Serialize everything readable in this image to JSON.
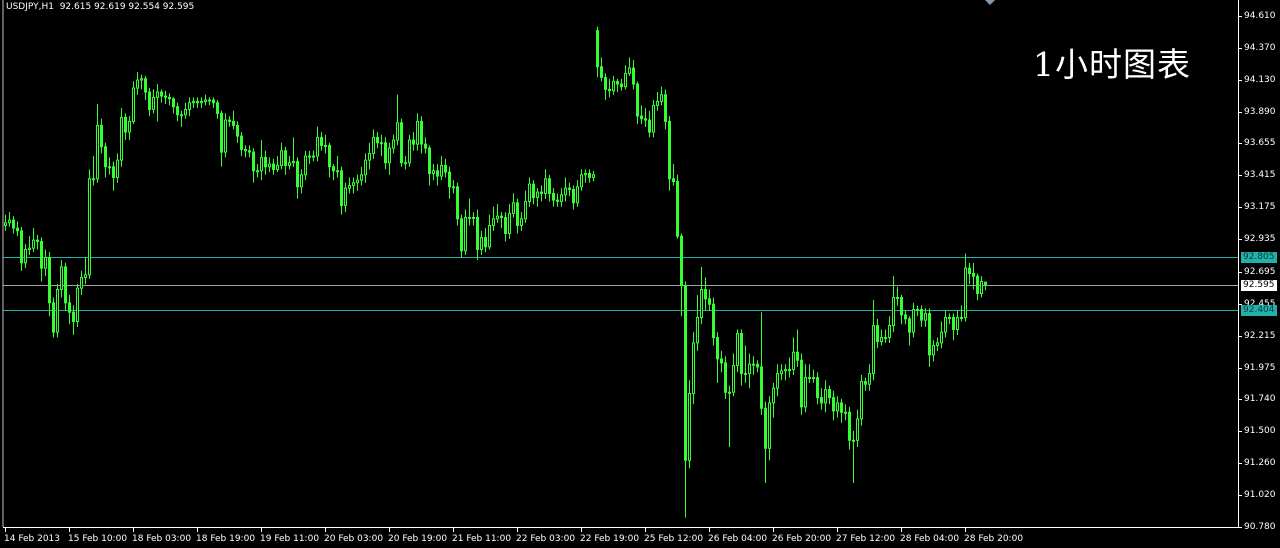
{
  "header": {
    "symbol": "USDJPY,H1",
    "ohlc_text": "92.615 92.619 92.554 92.595"
  },
  "overlay_text": "1小时图表",
  "colors": {
    "background": "#000000",
    "candle": "#33ff33",
    "axis": "#ffffff",
    "level_line": "#20b2aa",
    "bid_line": "#a0a0a0"
  },
  "levels": [
    {
      "value": 92.805,
      "label": "92.805",
      "kind": "level"
    },
    {
      "value": 92.595,
      "label": "92.595",
      "kind": "bid"
    },
    {
      "value": 92.404,
      "label": "92.404",
      "kind": "level"
    }
  ],
  "chart_data": {
    "type": "candlestick",
    "symbol": "USDJPY",
    "timeframe": "H1",
    "ylim": [
      90.78,
      94.61
    ],
    "grid": false,
    "y_ticks": [
      "94.610",
      "94.370",
      "94.130",
      "93.890",
      "93.655",
      "93.415",
      "93.175",
      "92.935",
      "92.695",
      "92.455",
      "92.215",
      "91.975",
      "91.740",
      "91.500",
      "91.260",
      "91.020",
      "90.780"
    ],
    "x_ticks": [
      "14 Feb 2013",
      "15 Feb 10:00",
      "18 Feb 03:00",
      "18 Feb 19:00",
      "19 Feb 11:00",
      "20 Feb 03:00",
      "20 Feb 19:00",
      "21 Feb 11:00",
      "22 Feb 03:00",
      "22 Feb 19:00",
      "25 Feb 12:00",
      "26 Feb 04:00",
      "26 Feb 20:00",
      "27 Feb 12:00",
      "28 Feb 04:00",
      "28 Feb 20:00"
    ],
    "ohlc": [
      [
        93.04,
        93.12,
        93.0,
        93.06
      ],
      [
        93.06,
        93.14,
        93.03,
        93.08
      ],
      [
        93.08,
        93.11,
        92.98,
        93.02
      ],
      [
        93.02,
        93.07,
        92.96,
        93.0
      ],
      [
        93.0,
        93.03,
        92.7,
        92.76
      ],
      [
        92.76,
        92.9,
        92.72,
        92.86
      ],
      [
        92.86,
        92.96,
        92.82,
        92.87
      ],
      [
        92.87,
        93.02,
        92.84,
        92.93
      ],
      [
        92.93,
        92.97,
        92.86,
        92.92
      ],
      [
        92.92,
        92.95,
        92.62,
        92.72
      ],
      [
        92.72,
        92.86,
        92.66,
        92.8
      ],
      [
        92.8,
        92.84,
        92.36,
        92.46
      ],
      [
        92.46,
        92.5,
        92.2,
        92.24
      ],
      [
        92.24,
        92.6,
        92.2,
        92.56
      ],
      [
        92.56,
        92.78,
        92.5,
        92.73
      ],
      [
        92.73,
        92.76,
        92.4,
        92.46
      ],
      [
        92.46,
        92.52,
        92.3,
        92.39
      ],
      [
        92.39,
        92.44,
        92.22,
        92.32
      ],
      [
        92.32,
        92.6,
        92.28,
        92.57
      ],
      [
        92.57,
        92.7,
        92.52,
        92.65
      ],
      [
        92.65,
        92.8,
        92.6,
        92.67
      ],
      [
        92.67,
        93.46,
        92.64,
        93.39
      ],
      [
        93.39,
        93.56,
        93.34,
        93.39
      ],
      [
        93.39,
        93.95,
        93.36,
        93.79
      ],
      [
        93.79,
        93.84,
        93.58,
        93.63
      ],
      [
        93.63,
        93.66,
        93.4,
        93.48
      ],
      [
        93.48,
        93.55,
        93.42,
        93.48
      ],
      [
        93.48,
        93.52,
        93.3,
        93.4
      ],
      [
        93.4,
        93.58,
        93.36,
        93.53
      ],
      [
        93.53,
        93.92,
        93.48,
        93.85
      ],
      [
        93.85,
        93.88,
        93.68,
        93.74
      ],
      [
        93.74,
        93.86,
        93.68,
        93.82
      ],
      [
        93.82,
        94.12,
        93.8,
        94.07
      ],
      [
        94.07,
        94.19,
        94.02,
        94.13
      ],
      [
        94.13,
        94.17,
        94.06,
        94.14
      ],
      [
        94.14,
        94.16,
        93.98,
        94.04
      ],
      [
        94.04,
        94.07,
        93.86,
        93.91
      ],
      [
        93.91,
        94.06,
        93.88,
        94.0
      ],
      [
        94.0,
        94.1,
        93.82,
        94.04
      ],
      [
        94.04,
        94.06,
        93.96,
        94.01
      ],
      [
        94.01,
        94.05,
        93.95,
        94.0
      ],
      [
        94.0,
        94.03,
        93.94,
        93.99
      ],
      [
        93.99,
        94.0,
        93.88,
        93.93
      ],
      [
        93.93,
        93.96,
        93.82,
        93.87
      ],
      [
        93.87,
        93.9,
        93.78,
        93.87
      ],
      [
        93.87,
        93.96,
        93.84,
        93.91
      ],
      [
        93.91,
        94.0,
        93.86,
        93.96
      ],
      [
        93.96,
        94.0,
        93.92,
        93.97
      ],
      [
        93.97,
        94.0,
        93.92,
        93.96
      ],
      [
        93.96,
        94.0,
        93.92,
        93.97
      ],
      [
        93.97,
        94.02,
        93.94,
        93.98
      ],
      [
        93.98,
        94.0,
        93.94,
        93.98
      ],
      [
        93.98,
        94.0,
        93.92,
        93.96
      ],
      [
        93.96,
        93.98,
        93.84,
        93.88
      ],
      [
        93.88,
        93.9,
        93.48,
        93.59
      ],
      [
        93.59,
        93.88,
        93.55,
        93.83
      ],
      [
        93.83,
        93.86,
        93.78,
        93.82
      ],
      [
        93.82,
        93.9,
        93.76,
        93.79
      ],
      [
        93.79,
        93.82,
        93.66,
        93.71
      ],
      [
        93.71,
        93.74,
        93.56,
        93.61
      ],
      [
        93.61,
        93.64,
        93.55,
        93.6
      ],
      [
        93.6,
        93.64,
        93.55,
        93.59
      ],
      [
        93.59,
        93.62,
        93.36,
        93.45
      ],
      [
        93.45,
        93.5,
        93.4,
        93.45
      ],
      [
        93.45,
        93.68,
        93.38,
        93.55
      ],
      [
        93.55,
        93.6,
        93.42,
        93.48
      ],
      [
        93.48,
        93.55,
        93.44,
        93.5
      ],
      [
        93.5,
        93.54,
        93.42,
        93.46
      ],
      [
        93.46,
        93.56,
        93.44,
        93.49
      ],
      [
        93.49,
        93.66,
        93.46,
        93.6
      ],
      [
        93.6,
        93.63,
        93.42,
        93.49
      ],
      [
        93.49,
        93.56,
        93.46,
        93.51
      ],
      [
        93.51,
        93.7,
        93.48,
        93.52
      ],
      [
        93.52,
        93.55,
        93.24,
        93.33
      ],
      [
        93.33,
        93.46,
        93.28,
        93.42
      ],
      [
        93.42,
        93.6,
        93.38,
        93.56
      ],
      [
        93.56,
        93.6,
        93.5,
        93.56
      ],
      [
        93.56,
        93.6,
        93.52,
        93.56
      ],
      [
        93.56,
        93.78,
        93.52,
        93.7
      ],
      [
        93.7,
        93.74,
        93.6,
        93.64
      ],
      [
        93.64,
        93.72,
        93.58,
        93.64
      ],
      [
        93.64,
        93.66,
        93.4,
        93.48
      ],
      [
        93.48,
        93.5,
        93.38,
        93.45
      ],
      [
        93.45,
        93.56,
        93.4,
        93.45
      ],
      [
        93.45,
        93.48,
        93.12,
        93.19
      ],
      [
        93.19,
        93.36,
        93.14,
        93.32
      ],
      [
        93.32,
        93.4,
        93.28,
        93.34
      ],
      [
        93.34,
        93.4,
        93.28,
        93.36
      ],
      [
        93.36,
        93.42,
        93.3,
        93.38
      ],
      [
        93.38,
        93.48,
        93.34,
        93.42
      ],
      [
        93.42,
        93.58,
        93.36,
        93.53
      ],
      [
        93.53,
        93.66,
        93.46,
        93.58
      ],
      [
        93.58,
        93.76,
        93.54,
        93.7
      ],
      [
        93.7,
        93.74,
        93.62,
        93.66
      ],
      [
        93.66,
        93.72,
        93.56,
        93.66
      ],
      [
        93.66,
        93.7,
        93.46,
        93.51
      ],
      [
        93.51,
        93.66,
        93.42,
        93.62
      ],
      [
        93.62,
        93.72,
        93.58,
        93.68
      ],
      [
        93.68,
        94.02,
        93.64,
        93.81
      ],
      [
        93.81,
        93.84,
        93.48,
        93.51
      ],
      [
        93.51,
        93.56,
        93.46,
        93.51
      ],
      [
        93.51,
        93.72,
        93.48,
        93.68
      ],
      [
        93.68,
        93.74,
        93.6,
        93.65
      ],
      [
        93.65,
        93.88,
        93.6,
        93.82
      ],
      [
        93.82,
        93.86,
        93.58,
        93.65
      ],
      [
        93.65,
        93.7,
        93.58,
        93.62
      ],
      [
        93.62,
        93.64,
        93.34,
        93.43
      ],
      [
        93.43,
        93.5,
        93.38,
        93.45
      ],
      [
        93.45,
        93.5,
        93.34,
        93.41
      ],
      [
        93.41,
        93.56,
        93.38,
        93.49
      ],
      [
        93.49,
        93.54,
        93.4,
        93.44
      ],
      [
        93.44,
        93.48,
        93.24,
        93.33
      ],
      [
        93.33,
        93.38,
        93.28,
        93.33
      ],
      [
        93.33,
        93.36,
        93.04,
        93.09
      ],
      [
        93.09,
        93.12,
        92.8,
        92.85
      ],
      [
        92.85,
        93.16,
        92.82,
        93.1
      ],
      [
        93.1,
        93.24,
        93.04,
        93.1
      ],
      [
        93.1,
        93.14,
        93.04,
        93.1
      ],
      [
        93.1,
        93.16,
        92.78,
        92.86
      ],
      [
        92.86,
        93.0,
        92.82,
        92.95
      ],
      [
        92.95,
        93.02,
        92.84,
        92.88
      ],
      [
        92.88,
        93.12,
        92.86,
        93.04
      ],
      [
        93.04,
        93.18,
        93.0,
        93.09
      ],
      [
        93.09,
        93.2,
        93.06,
        93.11
      ],
      [
        93.11,
        93.14,
        93.02,
        93.1
      ],
      [
        93.1,
        93.14,
        92.92,
        92.98
      ],
      [
        92.98,
        93.2,
        92.94,
        93.13
      ],
      [
        93.13,
        93.28,
        93.1,
        93.21
      ],
      [
        93.21,
        93.24,
        92.98,
        93.04
      ],
      [
        93.04,
        93.14,
        93.0,
        93.09
      ],
      [
        93.09,
        93.3,
        93.06,
        93.22
      ],
      [
        93.22,
        93.4,
        93.18,
        93.35
      ],
      [
        93.35,
        93.38,
        93.2,
        93.25
      ],
      [
        93.25,
        93.32,
        93.18,
        93.29
      ],
      [
        93.29,
        93.34,
        93.22,
        93.28
      ],
      [
        93.28,
        93.46,
        93.24,
        93.39
      ],
      [
        93.39,
        93.42,
        93.22,
        93.28
      ],
      [
        93.28,
        93.32,
        93.18,
        93.23
      ],
      [
        93.23,
        93.28,
        93.18,
        93.22
      ],
      [
        93.22,
        93.32,
        93.18,
        93.27
      ],
      [
        93.27,
        93.4,
        93.22,
        93.32
      ],
      [
        93.32,
        93.36,
        93.26,
        93.31
      ],
      [
        93.31,
        93.34,
        93.16,
        93.21
      ],
      [
        93.21,
        93.38,
        93.18,
        93.33
      ],
      [
        93.33,
        93.46,
        93.3,
        93.42
      ],
      [
        93.42,
        93.46,
        93.36,
        93.43
      ],
      [
        93.43,
        93.46,
        93.36,
        93.4
      ],
      [
        93.4,
        93.45,
        93.37,
        93.42
      ],
      [
        94.5,
        94.53,
        94.15,
        94.23
      ],
      [
        94.23,
        94.3,
        94.12,
        94.15
      ],
      [
        94.15,
        94.18,
        93.98,
        94.06
      ],
      [
        94.06,
        94.14,
        94.0,
        94.05
      ],
      [
        94.05,
        94.16,
        94.02,
        94.12
      ],
      [
        94.12,
        94.14,
        94.04,
        94.1
      ],
      [
        94.1,
        94.14,
        94.05,
        94.08
      ],
      [
        94.08,
        94.24,
        94.06,
        94.18
      ],
      [
        94.18,
        94.3,
        94.16,
        94.22
      ],
      [
        94.22,
        94.28,
        94.06,
        94.1
      ],
      [
        94.1,
        94.12,
        93.8,
        93.86
      ],
      [
        93.86,
        93.94,
        93.8,
        93.84
      ],
      [
        93.84,
        93.92,
        93.78,
        93.83
      ],
      [
        93.83,
        93.9,
        93.7,
        93.74
      ],
      [
        93.74,
        93.98,
        93.7,
        93.94
      ],
      [
        93.94,
        94.04,
        93.9,
        93.97
      ],
      [
        93.97,
        94.08,
        93.94,
        94.02
      ],
      [
        94.02,
        94.06,
        93.76,
        93.82
      ],
      [
        93.82,
        93.86,
        93.3,
        93.39
      ],
      [
        93.39,
        93.5,
        93.34,
        93.37
      ],
      [
        93.37,
        93.42,
        92.94,
        92.96
      ],
      [
        92.96,
        92.98,
        92.36,
        92.59
      ],
      [
        92.59,
        92.62,
        90.85,
        91.28
      ],
      [
        91.28,
        91.88,
        91.22,
        91.78
      ],
      [
        91.78,
        92.24,
        91.7,
        92.16
      ],
      [
        92.16,
        92.52,
        92.1,
        92.35
      ],
      [
        92.35,
        92.73,
        92.3,
        92.56
      ],
      [
        92.56,
        92.65,
        92.4,
        92.49
      ],
      [
        92.49,
        92.56,
        92.4,
        92.45
      ],
      [
        92.45,
        92.5,
        92.14,
        92.2
      ],
      [
        92.2,
        92.24,
        91.86,
        92.04
      ],
      [
        92.04,
        92.1,
        91.94,
        92.01
      ],
      [
        92.01,
        92.06,
        91.74,
        91.79
      ],
      [
        91.79,
        91.84,
        91.38,
        91.79
      ],
      [
        91.79,
        92.08,
        91.76,
        91.99
      ],
      [
        91.99,
        92.26,
        91.94,
        92.23
      ],
      [
        92.23,
        92.26,
        91.84,
        91.93
      ],
      [
        91.93,
        92.14,
        91.86,
        91.93
      ],
      [
        91.93,
        92.08,
        91.82,
        92.0
      ],
      [
        92.0,
        92.06,
        91.92,
        92.0
      ],
      [
        92.0,
        92.03,
        91.94,
        91.98
      ],
      [
        91.98,
        92.39,
        91.62,
        91.67
      ],
      [
        91.67,
        91.72,
        91.11,
        91.37
      ],
      [
        91.37,
        91.76,
        91.28,
        91.71
      ],
      [
        91.71,
        91.86,
        91.6,
        91.82
      ],
      [
        91.82,
        92.0,
        91.76,
        91.93
      ],
      [
        91.93,
        92.0,
        91.88,
        91.95
      ],
      [
        91.95,
        92.0,
        91.88,
        91.96
      ],
      [
        91.96,
        92.05,
        91.9,
        91.96
      ],
      [
        91.96,
        92.2,
        91.92,
        92.09
      ],
      [
        92.09,
        92.26,
        91.98,
        92.03
      ],
      [
        92.03,
        92.08,
        91.62,
        91.68
      ],
      [
        91.68,
        92.0,
        91.64,
        91.9
      ],
      [
        91.9,
        92.0,
        91.86,
        91.9
      ],
      [
        91.9,
        91.96,
        91.86,
        91.9
      ],
      [
        91.9,
        91.94,
        91.7,
        91.75
      ],
      [
        91.75,
        91.82,
        91.66,
        91.71
      ],
      [
        91.71,
        91.88,
        91.64,
        91.81
      ],
      [
        91.81,
        91.84,
        91.7,
        91.75
      ],
      [
        91.75,
        91.8,
        91.58,
        91.65
      ],
      [
        91.65,
        91.76,
        91.6,
        91.71
      ],
      [
        91.71,
        91.74,
        91.56,
        91.64
      ],
      [
        91.64,
        91.7,
        91.58,
        91.64
      ],
      [
        91.64,
        91.68,
        91.36,
        91.43
      ],
      [
        91.43,
        91.5,
        91.11,
        91.43
      ],
      [
        91.43,
        91.66,
        91.38,
        91.59
      ],
      [
        91.59,
        91.92,
        91.54,
        91.87
      ],
      [
        91.87,
        91.9,
        91.8,
        91.85
      ],
      [
        91.85,
        92.0,
        91.8,
        91.93
      ],
      [
        91.93,
        92.48,
        91.88,
        92.29
      ],
      [
        92.29,
        92.34,
        92.12,
        92.17
      ],
      [
        92.17,
        92.26,
        92.14,
        92.2
      ],
      [
        92.2,
        92.26,
        92.16,
        92.2
      ],
      [
        92.2,
        92.36,
        92.16,
        92.29
      ],
      [
        92.29,
        92.66,
        92.24,
        92.5
      ],
      [
        92.5,
        92.58,
        92.44,
        92.5
      ],
      [
        92.5,
        92.52,
        92.3,
        92.37
      ],
      [
        92.37,
        92.4,
        92.3,
        92.34
      ],
      [
        92.34,
        92.36,
        92.14,
        92.24
      ],
      [
        92.24,
        92.46,
        92.2,
        92.41
      ],
      [
        92.41,
        92.44,
        92.36,
        92.41
      ],
      [
        92.41,
        92.44,
        92.28,
        92.33
      ],
      [
        92.33,
        92.42,
        92.28,
        92.38
      ],
      [
        92.38,
        92.42,
        91.98,
        92.07
      ],
      [
        92.07,
        92.18,
        92.02,
        92.14
      ],
      [
        92.14,
        92.2,
        92.1,
        92.16
      ],
      [
        92.16,
        92.32,
        92.12,
        92.24
      ],
      [
        92.24,
        92.4,
        92.2,
        92.35
      ],
      [
        92.35,
        92.38,
        92.3,
        92.35
      ],
      [
        92.35,
        92.38,
        92.18,
        92.26
      ],
      [
        92.26,
        92.4,
        92.22,
        92.35
      ],
      [
        92.35,
        92.44,
        92.32,
        92.35
      ],
      [
        92.35,
        92.83,
        92.32,
        92.72
      ],
      [
        92.72,
        92.76,
        92.6,
        92.68
      ],
      [
        92.68,
        92.76,
        92.56,
        92.66
      ],
      [
        92.66,
        92.68,
        92.48,
        92.53
      ],
      [
        92.53,
        92.66,
        92.5,
        92.62
      ],
      [
        92.615,
        92.619,
        92.554,
        92.595
      ]
    ]
  }
}
